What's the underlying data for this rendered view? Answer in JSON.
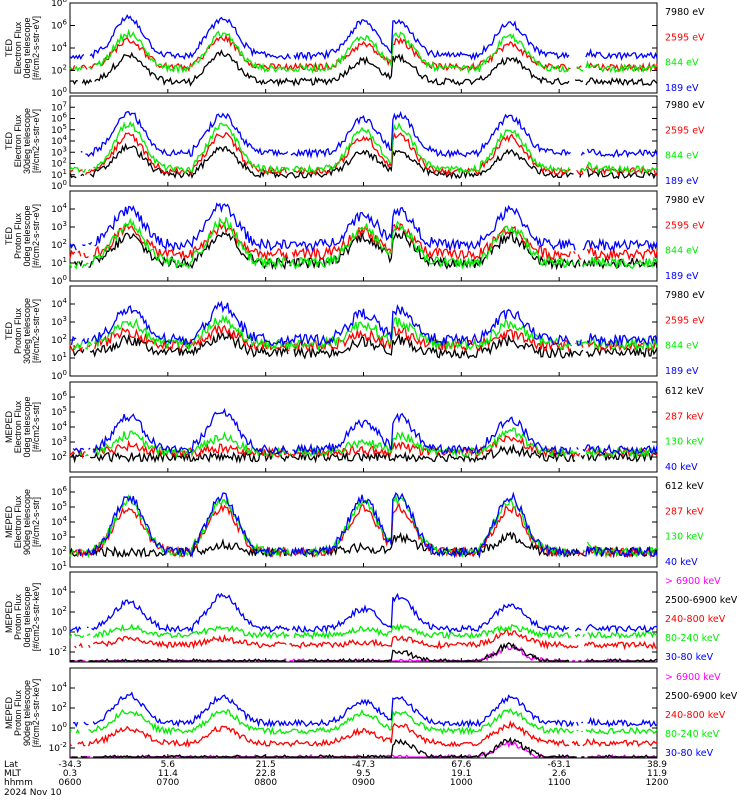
{
  "chart_data": {
    "type": "line",
    "x_axis": {
      "rows": [
        {
          "label": "Lat",
          "values": [
            "-34.3",
            "5.6",
            "21.5",
            "-47.3",
            "67.6",
            "-63.1",
            "38.9"
          ]
        },
        {
          "label": "MLT",
          "values": [
            "0.3",
            "11.4",
            "22.8",
            "9.5",
            "19.1",
            "2.6",
            "11.9"
          ]
        },
        {
          "label": "hhmm",
          "values": [
            "0600",
            "0700",
            "0800",
            "0900",
            "1000",
            "1100",
            "1200"
          ]
        }
      ],
      "date": "2024 Nov 10"
    },
    "panels": [
      {
        "ylabel": [
          "TED",
          "Electron Flux",
          "0deg telescope",
          "[#/cm2-s-str-eV]"
        ],
        "ylim": [
          1,
          100000000
        ],
        "ytick_labels": [
          "10^0",
          "10^2",
          "10^4",
          "10^6",
          "10^8"
        ],
        "series": [
          {
            "name": "7980 eV",
            "color": "#000000",
            "base": 10,
            "peaks": [
              2000,
              3000,
              800,
              1500,
              1000,
              1500
            ]
          },
          {
            "name": "2595 eV",
            "color": "#ff0000",
            "base": 200,
            "peaks": [
              50000,
              80000,
              20000,
              50000,
              20000,
              60000
            ]
          },
          {
            "name": "844 eV",
            "color": "#00ee00",
            "base": 150,
            "peaks": [
              200000,
              200000,
              100000,
              150000,
              100000,
              300000
            ]
          },
          {
            "name": "189 eV",
            "color": "#0000ff",
            "base": 2000,
            "peaks": [
              5000000,
              4000000,
              2000000,
              3000000,
              1500000,
              2000000
            ]
          }
        ]
      },
      {
        "ylabel": [
          "TED",
          "Electron Flux",
          "30deg telescope",
          "[#/cm2-s-str-eV]"
        ],
        "ylim": [
          1,
          100000000
        ],
        "ytick_labels": [
          "10^0",
          "10^1",
          "10^2",
          "10^3",
          "10^4",
          "10^5",
          "10^6",
          "10^7"
        ],
        "series": [
          {
            "name": "7980 eV",
            "color": "#000000",
            "base": 10,
            "peaks": [
              3000,
              2000,
              1000,
              1000,
              1000,
              800
            ]
          },
          {
            "name": "2595 eV",
            "color": "#ff0000",
            "base": 20,
            "peaks": [
              30000,
              40000,
              20000,
              30000,
              20000,
              50000
            ]
          },
          {
            "name": "844 eV",
            "color": "#00ee00",
            "base": 30,
            "peaks": [
              300000,
              300000,
              100000,
              200000,
              100000,
              300000
            ]
          },
          {
            "name": "189 eV",
            "color": "#0000ff",
            "base": 800,
            "peaks": [
              3000000,
              2000000,
              1000000,
              2000000,
              1500000,
              2000000
            ]
          }
        ]
      },
      {
        "ylabel": [
          "TED",
          "Proton Flux",
          "0deg telescope",
          "[#/cm2-s-str-eV]"
        ],
        "ylim": [
          1,
          100000
        ],
        "ytick_labels": [
          "10^0",
          "10^1",
          "10^2",
          "10^3",
          "10^4"
        ],
        "series": [
          {
            "name": "7980 eV",
            "color": "#000000",
            "base": 10,
            "peaks": [
              300,
              500,
              300,
              400,
              300,
              200
            ]
          },
          {
            "name": "2595 eV",
            "color": "#ff0000",
            "base": 30,
            "peaks": [
              800,
              1000,
              600,
              800,
              700,
              600
            ]
          },
          {
            "name": "844 eV",
            "color": "#00ee00",
            "base": 10,
            "peaks": [
              1500,
              2000,
              1000,
              1200,
              1000,
              1200
            ]
          },
          {
            "name": "189 eV",
            "color": "#0000ff",
            "base": 100,
            "peaks": [
              10000,
              15000,
              5000,
              8000,
              8000,
              10000
            ]
          }
        ]
      },
      {
        "ylabel": [
          "TED",
          "Proton Flux",
          "30deg telescope",
          "[#/cm2-s-str-eV]"
        ],
        "ylim": [
          1,
          100000
        ],
        "ytick_labels": [
          "10^0",
          "10^1",
          "10^2",
          "10^3",
          "10^4"
        ],
        "series": [
          {
            "name": "7980 eV",
            "color": "#000000",
            "base": 20,
            "peaks": [
              100,
              150,
              80,
              100,
              80,
              60
            ]
          },
          {
            "name": "2595 eV",
            "color": "#ff0000",
            "base": 50,
            "peaks": [
              300,
              400,
              200,
              300,
              200,
              200
            ]
          },
          {
            "name": "844 eV",
            "color": "#00ee00",
            "base": 60,
            "peaks": [
              1000,
              1500,
              800,
              1000,
              800,
              1000
            ]
          },
          {
            "name": "189 eV",
            "color": "#0000ff",
            "base": 100,
            "peaks": [
              5000,
              8000,
              3000,
              5000,
              3000,
              5000
            ]
          }
        ]
      },
      {
        "ylabel": [
          "MEPED",
          "Electron Flux",
          "0deg telescope",
          "[#/cm2-s-str]"
        ],
        "ylim": [
          10,
          10000000
        ],
        "ytick_labels": [
          "10^2",
          "10^3",
          "10^4",
          "10^5",
          "10^6"
        ],
        "series": [
          {
            "name": "612 keV",
            "color": "#000000",
            "base": 100,
            "peaks": [
              100,
              100,
              100,
              100,
              300,
              100
            ]
          },
          {
            "name": "287 keV",
            "color": "#ff0000",
            "base": 200,
            "peaks": [
              500,
              400,
              300,
              500,
              2000,
              500
            ]
          },
          {
            "name": "130 keV",
            "color": "#00ee00",
            "base": 200,
            "peaks": [
              3000,
              2000,
              1000,
              3000,
              5000,
              3000
            ]
          },
          {
            "name": "40 keV",
            "color": "#0000ff",
            "base": 300,
            "peaks": [
              50000,
              100000,
              20000,
              50000,
              30000,
              200000
            ]
          }
        ]
      },
      {
        "ylabel": [
          "MEPED",
          "Electron Flux",
          "90deg telescope",
          "[#/cm2-s-str]"
        ],
        "ylim": [
          10,
          10000000
        ],
        "ytick_labels": [
          "10^1",
          "10^2",
          "10^3",
          "10^4",
          "10^5",
          "10^6"
        ],
        "series": [
          {
            "name": "612 keV",
            "color": "#000000",
            "base": 100,
            "peaks": [
              100,
              300,
              200,
              1000,
              1000,
              300
            ]
          },
          {
            "name": "287 keV",
            "color": "#ff0000",
            "base": 100,
            "peaks": [
              100000,
              100000,
              80000,
              100000,
              80000,
              100000
            ]
          },
          {
            "name": "130 keV",
            "color": "#00ee00",
            "base": 100,
            "peaks": [
              300000,
              300000,
              200000,
              300000,
              200000,
              300000
            ]
          },
          {
            "name": "40 keV",
            "color": "#0000ff",
            "base": 100,
            "peaks": [
              500000,
              500000,
              400000,
              500000,
              500000,
              600000
            ]
          }
        ]
      },
      {
        "ylabel": [
          "MEPED",
          "Proton Flux",
          "0deg telescope",
          "[#/cm2-s-str-keV]"
        ],
        "ylim": [
          0.001,
          1000000
        ],
        "ytick_labels": [
          "10^-2",
          "10^0",
          "10^2",
          "10^4"
        ],
        "series": [
          {
            "name": "> 6900 keV",
            "color": "#ff00ff",
            "base": 0.001,
            "peaks": [
              0.001,
              0.001,
              0.001,
              0.001,
              0.03,
              0.001
            ]
          },
          {
            "name": "2500-6900 keV",
            "color": "#000000",
            "base": 0.001,
            "peaks": [
              0.001,
              0.001,
              0.001,
              0.01,
              0.05,
              0.001
            ]
          },
          {
            "name": "240-800 keV",
            "color": "#ff0000",
            "base": 0.05,
            "peaks": [
              0.2,
              0.2,
              0.1,
              0.3,
              1,
              0.2
            ]
          },
          {
            "name": "80-240 keV",
            "color": "#00ee00",
            "base": 0.5,
            "peaks": [
              3,
              3,
              2,
              3,
              3,
              3
            ]
          },
          {
            "name": "30-80 keV",
            "color": "#0000ff",
            "base": 2,
            "peaks": [
              1000,
              5000,
              200,
              3000,
              500,
              8000
            ]
          }
        ]
      },
      {
        "ylabel": [
          "MEPED",
          "Proton Flux",
          "90deg telescope",
          "[#/cm2-s-str-keV]"
        ],
        "ylim": [
          0.001,
          1000000
        ],
        "ytick_labels": [
          "10^-2",
          "10^0",
          "10^2",
          "10^4"
        ],
        "series": [
          {
            "name": "> 6900 keV",
            "color": "#ff00ff",
            "base": 0.001,
            "peaks": [
              0.001,
              0.001,
              0.001,
              0.001,
              0.03,
              0.001
            ]
          },
          {
            "name": "2500-6900 keV",
            "color": "#000000",
            "base": 0.001,
            "peaks": [
              0.001,
              0.001,
              0.001,
              0.05,
              0.05,
              0.001
            ]
          },
          {
            "name": "240-800 keV",
            "color": "#ff0000",
            "base": 0.03,
            "peaks": [
              1,
              1,
              0.5,
              2,
              2,
              1
            ]
          },
          {
            "name": "80-240 keV",
            "color": "#00ee00",
            "base": 0.5,
            "peaks": [
              50,
              50,
              30,
              40,
              50,
              50
            ]
          },
          {
            "name": "30-80 keV",
            "color": "#0000ff",
            "base": 3,
            "peaks": [
              2000,
              1500,
              500,
              1000,
              1000,
              2000
            ]
          }
        ]
      }
    ]
  }
}
